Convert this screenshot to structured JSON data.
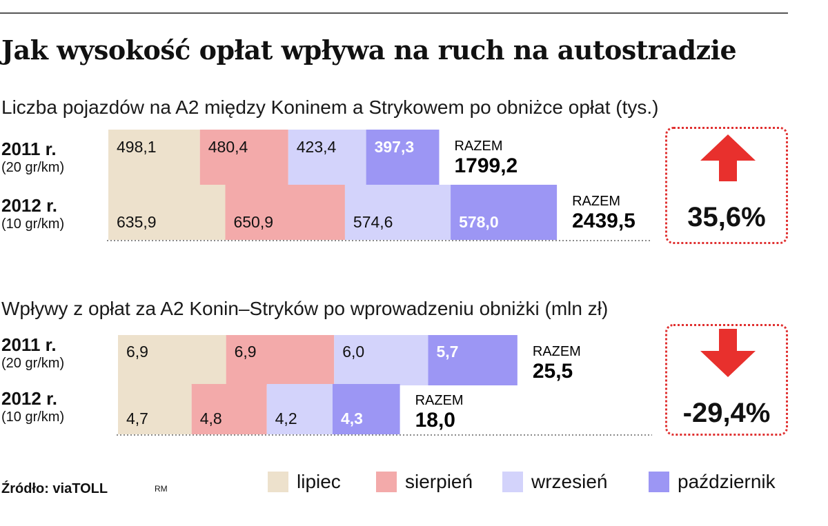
{
  "title": "Jak wysokość opłat wpływa na ruch na autostradzie",
  "colors": {
    "lipiec": "#ede1cc",
    "sierpien": "#f3aaaa",
    "wrzesien": "#d3d3fb",
    "pazdziernik": "#9c96f4",
    "arrow": "#e8302d"
  },
  "chart_data": [
    {
      "type": "bar",
      "stacked": true,
      "orientation": "horizontal",
      "title": "Liczba pojazdów na A2 między Koninem a Strykowem po obniżce opłat (tys.)",
      "series_names": [
        "lipiec",
        "sierpień",
        "wrzesień",
        "październik"
      ],
      "rows": [
        {
          "year": "2011 r.",
          "rate": "(20 gr/km)",
          "values": [
            498.1,
            480.4,
            423.4,
            397.3
          ],
          "labels": [
            "498,1",
            "480,4",
            "423,4",
            "397,3"
          ],
          "total_label": "RAZEM",
          "total": "1799,2"
        },
        {
          "year": "2012 r.",
          "rate": "(10 gr/km)",
          "values": [
            635.9,
            650.9,
            574.6,
            578.0
          ],
          "labels": [
            "635,9",
            "650,9",
            "574,6",
            "578,0"
          ],
          "total_label": "RAZEM",
          "total": "2439,5"
        }
      ],
      "change": {
        "direction": "up",
        "value": "35,6%"
      }
    },
    {
      "type": "bar",
      "stacked": true,
      "orientation": "horizontal",
      "title": "Wpływy z opłat za A2 Konin–Stryków po wprowadzeniu obniżki (mln zł)",
      "series_names": [
        "lipiec",
        "sierpień",
        "wrzesień",
        "październik"
      ],
      "rows": [
        {
          "year": "2011 r.",
          "rate": "(20 gr/km)",
          "values": [
            6.9,
            6.9,
            6.0,
            5.7
          ],
          "labels": [
            "6,9",
            "6,9",
            "6,0",
            "5,7"
          ],
          "total_label": "RAZEM",
          "total": "25,5"
        },
        {
          "year": "2012 r.",
          "rate": "(10 gr/km)",
          "values": [
            4.7,
            4.8,
            4.2,
            4.3
          ],
          "labels": [
            "4,7",
            "4,8",
            "4,2",
            "4,3"
          ],
          "total_label": "RAZEM",
          "total": "18,0"
        }
      ],
      "change": {
        "direction": "down",
        "value": "-29,4%"
      }
    }
  ],
  "legend": [
    "lipiec",
    "sierpień",
    "wrzesień",
    "październik"
  ],
  "source": "Źródło: viaTOLL",
  "initials": "RM"
}
